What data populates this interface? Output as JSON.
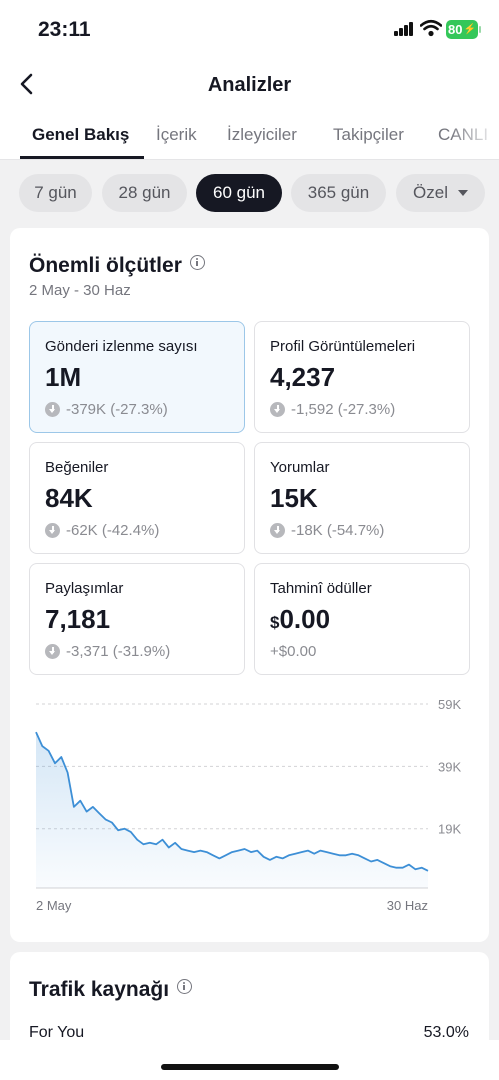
{
  "status_bar": {
    "time": "23:11",
    "battery": "80"
  },
  "nav": {
    "title": "Analizler"
  },
  "tabs": [
    "Genel Bakış",
    "İçerik",
    "İzleyiciler",
    "Takipçiler",
    "CANLI"
  ],
  "ranges": [
    "7 gün",
    "28 gün",
    "60 gün",
    "365 gün",
    "Özel"
  ],
  "selected_range": "60 gün",
  "key_metrics": {
    "title": "Önemli ölçütler",
    "date_range": "2 May - 30 Haz",
    "items": [
      {
        "label": "Gönderi izlenme sayısı",
        "currency": "",
        "value": "1M",
        "delta": "-379K (-27.3%)",
        "trend": "down"
      },
      {
        "label": "Profil Görüntülemeleri",
        "currency": "",
        "value": "4,237",
        "delta": "-1,592 (-27.3%)",
        "trend": "down"
      },
      {
        "label": "Beğeniler",
        "currency": "",
        "value": "84K",
        "delta": "-62K (-42.4%)",
        "trend": "down"
      },
      {
        "label": "Yorumlar",
        "currency": "",
        "value": "15K",
        "delta": "-18K (-54.7%)",
        "trend": "down"
      },
      {
        "label": "Paylaşımlar",
        "currency": "",
        "value": "7,181",
        "delta": "-3,371 (-31.9%)",
        "trend": "down"
      },
      {
        "label": "Tahminî ödüller",
        "currency": "$",
        "value": "0.00",
        "delta": "+$0.00",
        "trend": "none"
      }
    ]
  },
  "chart_data": {
    "type": "area",
    "series": [
      {
        "values": [
          50000,
          45500,
          44000,
          40000,
          42000,
          37000,
          26000,
          28000,
          24500,
          26000,
          24000,
          22000,
          21000,
          18500,
          19000,
          18000,
          15500,
          14000,
          14500,
          14000,
          15500,
          13000,
          14500,
          12500,
          12000,
          11500,
          12000,
          11500,
          10500,
          9500,
          10500,
          11500,
          12000,
          12500,
          11500,
          12000,
          10000,
          9000,
          10000,
          9500,
          10500,
          11000,
          11500,
          12000,
          11000,
          12000,
          11500,
          11000,
          10500,
          10500,
          11000,
          10500,
          9500,
          8500,
          9000,
          8000,
          7000,
          6500,
          6500,
          7500,
          6000,
          6500,
          5500
        ]
      }
    ],
    "x_labels": [
      "2 May",
      "30 Haz"
    ],
    "y_ticks": [
      "19K",
      "39K",
      "59K"
    ],
    "ylim": [
      0,
      59000
    ],
    "color": "#3d8fd6",
    "grid": true
  },
  "traffic": {
    "title": "Trafik kaynağı",
    "rows": [
      {
        "label": "For You",
        "value": "53.0%"
      }
    ]
  }
}
